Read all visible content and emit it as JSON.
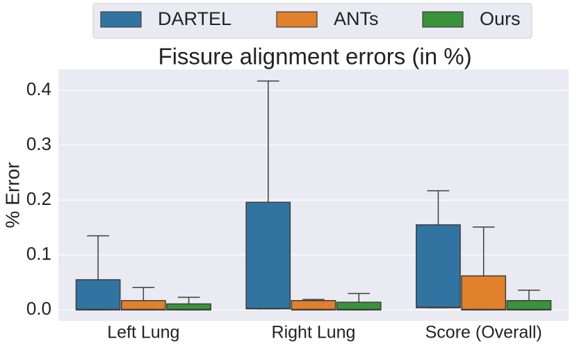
{
  "chart_data": {
    "type": "box",
    "title": "Fissure alignment errors (in %)",
    "y_label": "% Error",
    "categories": [
      "Left Lung",
      "Right Lung",
      "Score  (Overall)"
    ],
    "series": [
      {
        "name": "DARTEL",
        "color": "#3274a1",
        "whislo": [
          0,
          0.002,
          0.004
        ],
        "q1": [
          0,
          0.002,
          0.004
        ],
        "median": [
          0.001,
          0.003,
          0.005
        ],
        "q3": [
          0.055,
          0.196,
          0.155
        ],
        "whishi": [
          0.135,
          0.417,
          0.217
        ]
      },
      {
        "name": "ANTs",
        "color": "#e1812c",
        "whislo": [
          0,
          0,
          0
        ],
        "q1": [
          0,
          0,
          0
        ],
        "median": [
          0.001,
          0.001,
          0.001
        ],
        "q3": [
          0.017,
          0.017,
          0.062
        ],
        "whishi": [
          0.041,
          0.019,
          0.151
        ]
      },
      {
        "name": "Ours",
        "color": "#3a923a",
        "whislo": [
          0,
          0,
          0
        ],
        "q1": [
          0,
          0,
          0
        ],
        "median": [
          0.001,
          0.001,
          0.001
        ],
        "q3": [
          0.011,
          0.014,
          0.017
        ],
        "whishi": [
          0.023,
          0.03,
          0.036
        ]
      }
    ],
    "ylim": [
      -0.02,
      0.438
    ],
    "yticks": [
      {
        "value": 0,
        "label": "0.0"
      },
      0.1,
      0.2,
      0.3,
      0.4
    ],
    "grid": true,
    "legend": "top"
  }
}
